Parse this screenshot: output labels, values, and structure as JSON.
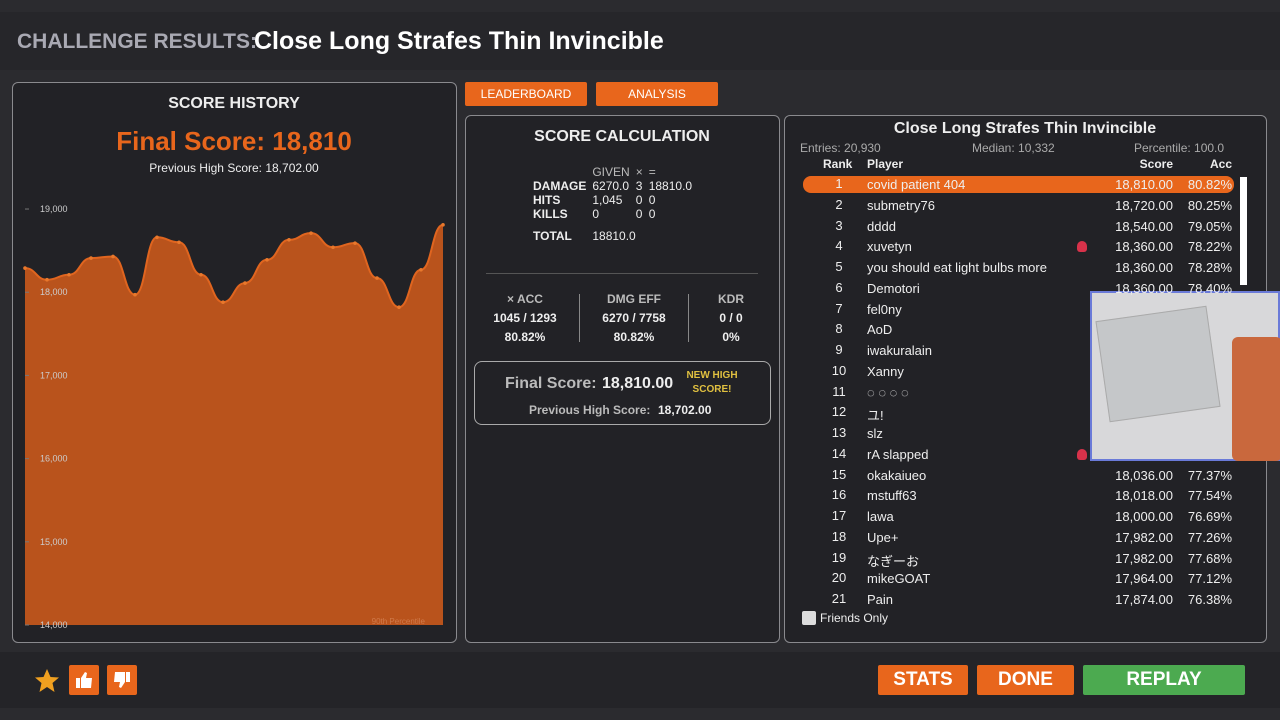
{
  "header": {
    "label": "CHALLENGE RESULTS:",
    "title": "Close Long Strafes Thin Invincible"
  },
  "score_history": {
    "title": "SCORE HISTORY",
    "final_score": "Final Score: 18,810",
    "previous_high": "Previous High Score: 18,702.00",
    "chart": {
      "type": "area",
      "color": "#b9531c",
      "line_color": "#e0651f",
      "values": [
        18290,
        18150,
        18210,
        18410,
        18430,
        17970,
        18660,
        18600,
        18210,
        17880,
        18110,
        18390,
        18630,
        18710,
        18540,
        18590,
        18170,
        17820,
        18270,
        18810
      ],
      "ylim": [
        14000,
        19100
      ],
      "yticks": [
        {
          "value": 14000,
          "label": "14,000"
        },
        {
          "value": 15000,
          "label": "15,000"
        },
        {
          "value": 16000,
          "label": "16,000"
        },
        {
          "value": 17000,
          "label": "17,000"
        },
        {
          "value": 18000,
          "label": "18,000"
        },
        {
          "value": 19000,
          "label": "19,000"
        }
      ],
      "annotation": "90th Percentile"
    }
  },
  "tabs": [
    "LEADERBOARD",
    "ANALYSIS"
  ],
  "calc": {
    "title": "SCORE CALCULATION",
    "columns": [
      "GIVEN",
      "×",
      "="
    ],
    "rows": [
      [
        "DAMAGE",
        "6270.0",
        "3",
        "18810.0"
      ],
      [
        "HITS",
        "1,045",
        "0",
        "0"
      ],
      [
        "KILLS",
        "0",
        "0",
        "0"
      ]
    ],
    "total": [
      "TOTAL",
      "18810.0"
    ],
    "stats": [
      [
        "× ACC",
        "1045 / 1293",
        "80.82%"
      ],
      [
        "DMG EFF",
        "6270 / 7758",
        "80.82%"
      ],
      [
        "KDR",
        "0 / 0",
        "0%"
      ]
    ],
    "final_label": "Final Score:",
    "final_value": "18,810.00",
    "new_high": "NEW HIGH SCORE!",
    "prev_label": "Previous High Score:",
    "prev_value": "18,702.00"
  },
  "leaderboard": {
    "title": "Close Long Strafes Thin Invincible",
    "entries": "Entries: 20,930",
    "median": "Median: 10,332",
    "percentile": "Percentile: 100.0",
    "columns": [
      "Rank",
      "Player",
      "Score",
      "Acc"
    ],
    "rows": [
      [
        "1",
        "covid patient 404",
        "18,810.00",
        "80.82%"
      ],
      [
        "2",
        "submetry76",
        "18,720.00",
        "80.25%"
      ],
      [
        "3",
        "dddd",
        "18,540.00",
        "79.05%"
      ],
      [
        "4",
        "xuvetyn",
        "18,360.00",
        "78.22%"
      ],
      [
        "5",
        "you should eat light bulbs more",
        "18,360.00",
        "78.28%"
      ],
      [
        "6",
        "Demotori",
        "18,360.00",
        "78.40%"
      ],
      [
        "7",
        "fel0ny"
      ],
      [
        "8",
        "AoD"
      ],
      [
        "9",
        "iwakuralain"
      ],
      [
        "10",
        "Xanny"
      ],
      [
        "11",
        "◌ ◌ ◌ ◌"
      ],
      [
        "12",
        "ユ!"
      ],
      [
        "13",
        "slz"
      ],
      [
        "14",
        "rA slapped"
      ],
      [
        "15",
        "okakaiueo",
        "18,036.00",
        "77.37%"
      ],
      [
        "16",
        "mstuff63",
        "18,018.00",
        "77.54%"
      ],
      [
        "17",
        "lawa",
        "18,000.00",
        "76.69%"
      ],
      [
        "18",
        "Upe+",
        "17,982.00",
        "77.26%"
      ],
      [
        "19",
        "なぎーお",
        "17,982.00",
        "77.68%"
      ],
      [
        "20",
        "mikeGOAT",
        "17,964.00",
        "77.12%"
      ],
      [
        "21",
        "Pain",
        "17,874.00",
        "76.38%"
      ]
    ],
    "friends_only": "Friends Only"
  },
  "buttons": [
    "STATS",
    "DONE",
    "REPLAY"
  ]
}
